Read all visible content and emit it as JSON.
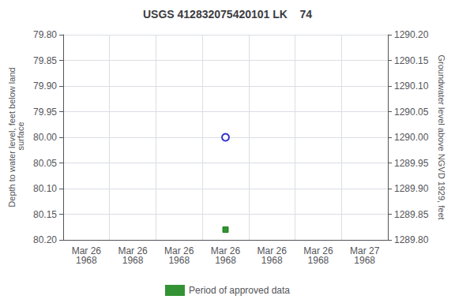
{
  "chart_data": {
    "type": "scatter",
    "title": "USGS 412832075420101 LK    74",
    "ylabel": "Depth to water level, feet below land\n surface",
    "y2label": "Groundwater level above NGVD 1929, feet",
    "categories": [
      "Mar 26\n1968",
      "Mar 26\n1968",
      "Mar 26\n1968",
      "Mar 26\n1968",
      "Mar 26\n1968",
      "Mar 26\n1968",
      "Mar 27\n1968"
    ],
    "series": [
      {
        "color": "#0000bb",
        "marker": "circle",
        "values": [
          null,
          null,
          null,
          80.0,
          null,
          null,
          null
        ]
      },
      {
        "name": "Period of approved data",
        "color": "#007700",
        "marker": "square",
        "values": [
          null,
          null,
          null,
          80.18,
          null,
          null,
          null
        ]
      }
    ],
    "ylim": [
      80.2,
      79.8
    ],
    "yticks": [
      {
        "value": 79.8,
        "label": "79.80"
      },
      {
        "value": 79.85,
        "label": "79.85"
      },
      {
        "value": 79.9,
        "label": "79.90"
      },
      {
        "value": 79.95,
        "label": "79.95"
      },
      {
        "value": 80.0,
        "label": "80.00"
      },
      {
        "value": 80.05,
        "label": "80.05"
      },
      {
        "value": 80.1,
        "label": "80.10"
      },
      {
        "value": 80.15,
        "label": "80.15"
      },
      {
        "value": 80.2,
        "label": "80.20"
      }
    ],
    "y2lim": [
      1289.8,
      1290.2
    ],
    "y2ticks": [
      {
        "value": 1289.8,
        "label": "1289.80"
      },
      {
        "value": 1289.85,
        "label": "1289.85"
      },
      {
        "value": 1289.9,
        "label": "1289.90"
      },
      {
        "value": 1289.95,
        "label": "1289.95"
      },
      {
        "value": 1290.0,
        "label": "1290.00"
      },
      {
        "value": 1290.05,
        "label": "1290.05"
      },
      {
        "value": 1290.1,
        "label": "1290.10"
      },
      {
        "value": 1290.15,
        "label": "1290.15"
      },
      {
        "value": 1290.2,
        "label": "1290.20"
      }
    ],
    "grid": true,
    "legend": "bottom"
  }
}
